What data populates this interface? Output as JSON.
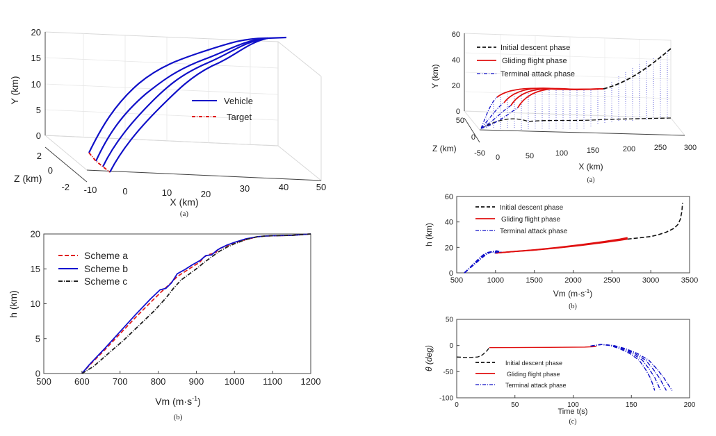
{
  "chart_data": [
    {
      "id": "left-a",
      "type": "line3d",
      "caption": "(a)",
      "xlabel": "X (km)",
      "ylabel": "Y (km)",
      "zlabel": "Z (km)",
      "x_ticks": [
        "-10",
        "0",
        "10",
        "20",
        "30",
        "40",
        "50"
      ],
      "y_ticks": [
        "0",
        "5",
        "10",
        "15",
        "20"
      ],
      "z_ticks": [
        "2",
        "0",
        "-2"
      ],
      "legend": [
        {
          "label": "Vehicle",
          "color": "#1010c8",
          "style": "solid"
        },
        {
          "label": "Target",
          "color": "#e01010",
          "style": "dashdot"
        }
      ]
    },
    {
      "id": "left-b",
      "type": "line",
      "caption": "(b)",
      "xlabel": "Vm (m·s",
      "xlabel_sup": "-1",
      "xlabel_end": ")",
      "ylabel": "h (km)",
      "xlim": [
        500,
        1200
      ],
      "ylim": [
        0,
        20
      ],
      "x_ticks": [
        500,
        600,
        700,
        800,
        900,
        1000,
        1100,
        1200
      ],
      "y_ticks": [
        0,
        5,
        10,
        15,
        20
      ],
      "series": [
        {
          "name": "Scheme a",
          "color": "#e02020",
          "style": "dash",
          "x": [
            600,
            620,
            660,
            700,
            740,
            780,
            810,
            830,
            850,
            870,
            890,
            910,
            920,
            930,
            950,
            960,
            980,
            1000,
            1030,
            1060,
            1080,
            1100,
            1150,
            1200
          ],
          "y": [
            0,
            1.2,
            3.4,
            5.7,
            8.0,
            10.2,
            11.8,
            12.8,
            13.9,
            14.6,
            15.3,
            16.0,
            16.7,
            17.0,
            17.3,
            17.9,
            18.3,
            18.7,
            19.2,
            19.6,
            19.7,
            19.75,
            19.8,
            20
          ]
        },
        {
          "name": "Scheme b",
          "color": "#1010d0",
          "style": "solid",
          "x": [
            600,
            620,
            660,
            700,
            740,
            780,
            805,
            820,
            835,
            850,
            870,
            890,
            910,
            925,
            940,
            955,
            965,
            980,
            1000,
            1030,
            1060,
            1080,
            1100,
            1150,
            1200
          ],
          "y": [
            0,
            1.3,
            3.6,
            6.0,
            8.4,
            10.7,
            12.0,
            12.2,
            13.0,
            14.3,
            14.9,
            15.6,
            16.2,
            16.9,
            17.0,
            17.7,
            18.0,
            18.4,
            18.8,
            19.3,
            19.6,
            19.7,
            19.75,
            19.8,
            20
          ]
        },
        {
          "name": "Scheme c",
          "color": "#222222",
          "style": "dashdot",
          "x": [
            600,
            630,
            670,
            710,
            750,
            790,
            820,
            840,
            860,
            880,
            900,
            920,
            940,
            960,
            980,
            1000,
            1030,
            1060,
            1080,
            1100,
            1150,
            1200
          ],
          "y": [
            0,
            1.0,
            2.9,
            4.8,
            6.9,
            9.0,
            10.8,
            12.2,
            13.4,
            14.2,
            15.0,
            15.9,
            16.7,
            17.5,
            18.1,
            18.6,
            19.2,
            19.6,
            19.7,
            19.75,
            19.8,
            20
          ]
        }
      ],
      "legend_entries": [
        "Scheme a",
        "Scheme b",
        "Scheme c"
      ]
    },
    {
      "id": "right-a",
      "type": "line3d",
      "caption": "(a)",
      "xlabel": "X (km)",
      "ylabel": "Y (km)",
      "zlabel": "Z (km)",
      "x_ticks": [
        "0",
        "50",
        "100",
        "150",
        "200",
        "250",
        "300"
      ],
      "y_ticks": [
        "0",
        "20",
        "40",
        "60"
      ],
      "z_ticks": [
        "50",
        "0",
        "-50"
      ],
      "legend": [
        {
          "label": "Initial descent phase",
          "color": "#111111",
          "style": "dash"
        },
        {
          "label": "Gliding flight phase",
          "color": "#e01010",
          "style": "solid"
        },
        {
          "label": "Terminal attack phase",
          "color": "#1010c8",
          "style": "dashdot"
        }
      ]
    },
    {
      "id": "right-b",
      "type": "line",
      "caption": "(b)",
      "xlabel": "Vm (m·s",
      "xlabel_sup": "-1",
      "xlabel_end": ")",
      "ylabel": "h (km)",
      "xlim": [
        500,
        3500
      ],
      "ylim": [
        0,
        60
      ],
      "x_ticks": [
        500,
        1000,
        1500,
        2000,
        2500,
        3000,
        3500
      ],
      "y_ticks": [
        0,
        20,
        40,
        60
      ],
      "series": [
        {
          "name": "Initial descent phase",
          "color": "#111111",
          "style": "dash",
          "x": [
            2700,
            2850,
            3000,
            3100,
            3200,
            3300,
            3350,
            3380,
            3400,
            3410
          ],
          "y": [
            26.5,
            27.5,
            28.5,
            30,
            32,
            35,
            38,
            42,
            48,
            55
          ]
        },
        {
          "name": "Gliding flight phase",
          "color": "#e01010",
          "style": "solid",
          "x": [
            1000,
            1200,
            1500,
            1800,
            2100,
            2400,
            2600,
            2700
          ],
          "y": [
            15.5,
            16.5,
            17.8,
            19.5,
            21.5,
            23.8,
            25.5,
            26.5
          ]
        },
        {
          "name": "Terminal attack phase",
          "color": "#1010c8",
          "style": "dashdot",
          "x": [
            600,
            650,
            700,
            750,
            800,
            850,
            900,
            950,
            1000
          ],
          "y": [
            0,
            3,
            6,
            9,
            12,
            14.5,
            16,
            16.5,
            15.5
          ]
        }
      ],
      "legend_entries": [
        "Initial descent phase",
        "Gliding flight phase",
        "Terminal attack phase"
      ]
    },
    {
      "id": "right-c",
      "type": "line",
      "caption": "(c)",
      "xlabel": "Time t(s)",
      "ylabel": "θ (deg)",
      "xlim": [
        0,
        200
      ],
      "ylim": [
        -100,
        50
      ],
      "x_ticks": [
        0,
        50,
        100,
        150,
        200
      ],
      "y_ticks": [
        -100,
        -50,
        0,
        50
      ],
      "series": [
        {
          "name": "Initial descent phase",
          "color": "#111111",
          "style": "dash",
          "x": [
            0,
            10,
            18,
            22,
            26,
            28
          ],
          "y": [
            -22,
            -23,
            -22,
            -18,
            -10,
            -4
          ]
        },
        {
          "name": "Gliding flight phase",
          "color": "#e01010",
          "style": "solid",
          "x": [
            28,
            50,
            80,
            110,
            120
          ],
          "y": [
            -4,
            -3.8,
            -3.5,
            -3,
            -2
          ]
        },
        {
          "name": "Terminal attack phase",
          "color": "#1010c8",
          "style": "dashdot",
          "x": [
            115,
            125,
            135,
            145,
            155,
            165,
            172,
            178,
            182,
            185
          ],
          "y": [
            -1,
            2,
            0,
            -6,
            -15,
            -28,
            -45,
            -62,
            -76,
            -86
          ]
        }
      ],
      "legend_entries": [
        "Initial descent phase",
        "Gliding flight phase",
        "Terminal attack phase"
      ]
    }
  ]
}
